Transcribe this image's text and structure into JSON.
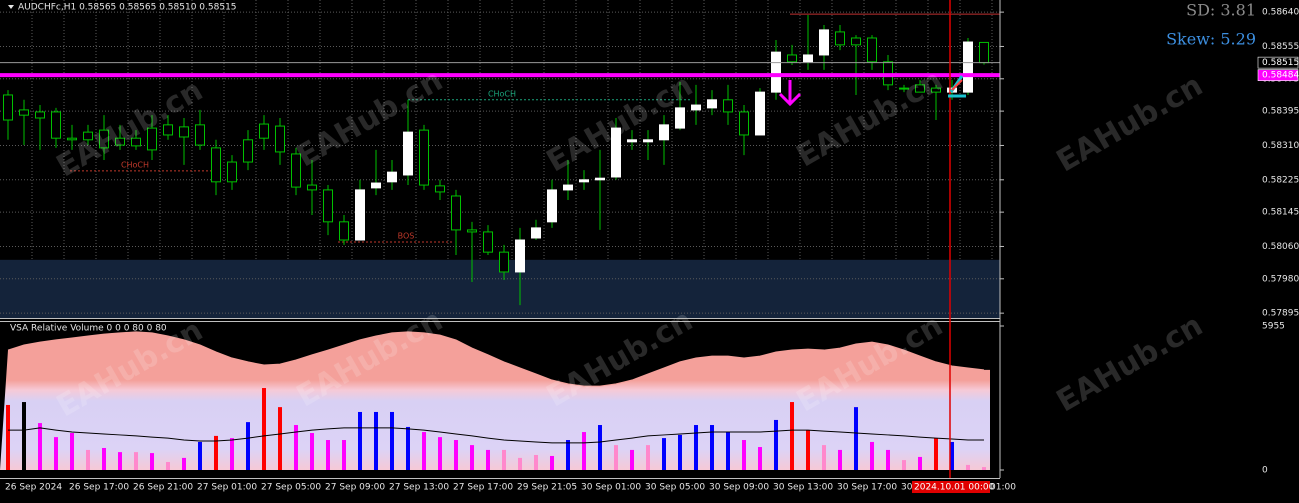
{
  "chart_data": [
    {
      "type": "candlestick",
      "title": "AUDCHFc,H1  0.58565 0.58565 0.58510 0.58515",
      "open": [
        0.58435,
        0.58398,
        0.58393,
        0.58393,
        0.58328,
        0.58343,
        0.58348,
        0.58328,
        0.58328,
        0.58353,
        0.58361,
        0.58356,
        0.58361,
        0.58304,
        0.58269,
        0.58324,
        0.58363,
        0.58358,
        0.58289,
        0.58212,
        0.582,
        0.58121,
        0.58076,
        0.58205,
        0.5822,
        0.58237,
        0.58348,
        0.5821,
        0.58185,
        0.58101,
        0.58096,
        0.58046,
        0.57997,
        0.58081,
        0.58121,
        0.582,
        0.5822,
        0.58225,
        0.58232,
        0.58319,
        0.58319,
        0.58324,
        0.58353,
        0.58398,
        0.58403,
        0.58423,
        0.58393,
        0.58336,
        0.58442,
        0.58534,
        0.58517,
        0.58534,
        0.58591,
        0.58576,
        0.58576,
        0.58517,
        0.58452,
        0.5846,
        0.58452,
        0.58442,
        0.58442,
        0.58565
      ],
      "high": [
        0.58447,
        0.58423,
        0.5841,
        0.58403,
        0.58361,
        0.58361,
        0.58385,
        0.58361,
        0.58348,
        0.58385,
        0.58385,
        0.58378,
        0.58398,
        0.58324,
        0.58286,
        0.58348,
        0.58385,
        0.58378,
        0.58304,
        0.58274,
        0.58212,
        0.58138,
        0.58225,
        0.58299,
        0.58274,
        0.58423,
        0.58361,
        0.58225,
        0.582,
        0.58121,
        0.58113,
        0.58064,
        0.58106,
        0.58126,
        0.58225,
        0.58274,
        0.58249,
        0.58299,
        0.58378,
        0.58348,
        0.58348,
        0.58385,
        0.58467,
        0.5846,
        0.58447,
        0.5846,
        0.5841,
        0.58452,
        0.58571,
        0.58559,
        0.58633,
        0.58608,
        0.58608,
        0.58583,
        0.58583,
        0.58534,
        0.5846,
        0.58472,
        0.5846,
        0.58472,
        0.58576,
        0.58565
      ],
      "low": [
        0.58324,
        0.58311,
        0.58299,
        0.58304,
        0.58299,
        0.58311,
        0.58274,
        0.58299,
        0.58299,
        0.58274,
        0.58324,
        0.58262,
        0.58299,
        0.58187,
        0.582,
        0.58249,
        0.58299,
        0.58262,
        0.58187,
        0.58138,
        0.58088,
        0.58064,
        0.58076,
        0.58187,
        0.582,
        0.58212,
        0.582,
        0.58175,
        0.58039,
        0.57972,
        0.58039,
        0.57977,
        0.57915,
        0.58076,
        0.58106,
        0.58175,
        0.582,
        0.58101,
        0.58225,
        0.58299,
        0.58274,
        0.58262,
        0.58348,
        0.58361,
        0.58385,
        0.58361,
        0.58286,
        0.58336,
        0.58423,
        0.58509,
        0.58497,
        0.58497,
        0.58546,
        0.58435,
        0.58497,
        0.58447,
        0.58442,
        0.58442,
        0.58373,
        0.58423,
        0.58435,
        0.5851
      ],
      "close": [
        0.58373,
        0.58385,
        0.58378,
        0.58328,
        0.58324,
        0.58324,
        0.58304,
        0.58311,
        0.58309,
        0.58299,
        0.58336,
        0.58331,
        0.58311,
        0.5822,
        0.5822,
        0.58269,
        0.58328,
        0.58294,
        0.58207,
        0.582,
        0.58121,
        0.58076,
        0.582,
        0.58217,
        0.58244,
        0.58343,
        0.58212,
        0.58195,
        0.58101,
        0.58096,
        0.58046,
        0.57997,
        0.58076,
        0.58106,
        0.582,
        0.58212,
        0.58225,
        0.58229,
        0.58353,
        0.58324,
        0.58324,
        0.58361,
        0.58403,
        0.5841,
        0.58423,
        0.58393,
        0.58336,
        0.58442,
        0.58541,
        0.58517,
        0.58534,
        0.58596,
        0.58559,
        0.58559,
        0.58517,
        0.5846,
        0.5845,
        0.58442,
        0.58442,
        0.58452,
        0.58566,
        0.58515
      ],
      "up_color": "#ffffff",
      "down_color": "#000000",
      "wick_color": "#00c000",
      "ylim": [
        0.57883,
        0.5867
      ],
      "yticks": [
        {
          "value": 0.5864,
          "label": "0.58640"
        },
        {
          "value": 0.58555,
          "label": "0.58555"
        },
        {
          "value": 0.58475,
          "label": "0.58475"
        },
        {
          "value": 0.58395,
          "label": "0.58395"
        },
        {
          "value": 0.5831,
          "label": "0.58310"
        },
        {
          "value": 0.58225,
          "label": "0.58225"
        },
        {
          "value": 0.58145,
          "label": "0.58145"
        },
        {
          "value": 0.5806,
          "label": "0.58060"
        },
        {
          "value": 0.5798,
          "label": "0.57980"
        },
        {
          "value": 0.57895,
          "label": "0.57895"
        }
      ],
      "grid": true,
      "price_tags": [
        {
          "value": 0.58515,
          "label": "0.58515",
          "color": "#000000"
        },
        {
          "value": 0.58484,
          "label": "0.58484",
          "color": "#ff00ff"
        }
      ],
      "high_line": 0.58635,
      "zone_top": 0.58027,
      "levels": [
        {
          "text": "CHoCH",
          "value": 0.58423,
          "color": "#1aa37a"
        },
        {
          "text": "CHoCH",
          "value": 0.58247,
          "color": "#c0392b"
        },
        {
          "text": "BOS",
          "value": 0.58071,
          "color": "#c0392b"
        }
      ],
      "stats": {
        "sd": "SD: 3.81",
        "skew": "Skew: 5.29"
      },
      "x_labels": [
        "26 Sep 2024",
        "26 Sep 17:00",
        "26 Sep 21:00",
        "27 Sep 01:00",
        "27 Sep 05:00",
        "27 Sep 09:00",
        "27 Sep 13:00",
        "27 Sep 17:00",
        "29 Sep 21:05",
        "30 Sep 01:00",
        "30 Sep 05:00",
        "30 Sep 09:00",
        "30 Sep 13:00",
        "30 Sep 17:00",
        "30",
        "01:00"
      ],
      "cursor_label": "2024.10.01 00:00",
      "watermark": "EAHub.cn"
    },
    {
      "type": "bar",
      "title": "VSA Relative Volume 0 0 0 80 0 80",
      "values": [
        2690,
        2810,
        1940,
        1360,
        1530,
        830,
        910,
        740,
        740,
        700,
        330,
        500,
        1160,
        1410,
        1320,
        1980,
        3390,
        2600,
        1860,
        1530,
        1240,
        1240,
        2400,
        2400,
        2400,
        1780,
        1570,
        1360,
        1240,
        1030,
        830,
        830,
        500,
        620,
        580,
        1240,
        1570,
        1860,
        1030,
        830,
        1030,
        1320,
        1450,
        1860,
        1860,
        1570,
        1240,
        950,
        2070,
        2810,
        1650,
        1030,
        830,
        2600,
        1160,
        830,
        410,
        540,
        1320,
        1160,
        210,
        120
      ],
      "colors": [
        "#ff0000",
        "#000000",
        "#ff00ff",
        "#ff00ff",
        "#ff00ff",
        "#ff88cc",
        "#ff00ff",
        "#ff00ff",
        "#ff88cc",
        "#ff00ff",
        "#ff88cc",
        "#ff00ff",
        "#0000ff",
        "#ff0000",
        "#ff00ff",
        "#0000ff",
        "#ff0000",
        "#ff0000",
        "#ff00ff",
        "#ff00ff",
        "#ff00ff",
        "#ff00ff",
        "#0000ff",
        "#0000ff",
        "#0000ff",
        "#0000ff",
        "#ff00ff",
        "#ff00ff",
        "#ff00ff",
        "#ff00ff",
        "#ff00ff",
        "#ff88cc",
        "#ff88cc",
        "#ff88cc",
        "#ff00ff",
        "#0000ff",
        "#ff00ff",
        "#0000ff",
        "#ff88cc",
        "#ff00ff",
        "#ff88cc",
        "#0000ff",
        "#0000ff",
        "#0000ff",
        "#0000ff",
        "#0000ff",
        "#ff00ff",
        "#ff00ff",
        "#0000ff",
        "#ff0000",
        "#ff0000",
        "#ff88cc",
        "#ff00ff",
        "#0000ff",
        "#ff00ff",
        "#ff00ff",
        "#ff88cc",
        "#ff00ff",
        "#ff0000",
        "#0000ff",
        "#ff88cc",
        "#ff88cc"
      ],
      "envelope": [
        4960,
        5170,
        5290,
        5380,
        5460,
        5540,
        5620,
        5670,
        5710,
        5670,
        5540,
        5380,
        5170,
        4880,
        4630,
        4470,
        4340,
        4380,
        4550,
        4760,
        4960,
        5170,
        5380,
        5540,
        5670,
        5710,
        5670,
        5580,
        5380,
        5040,
        4760,
        4470,
        4220,
        3970,
        3720,
        3560,
        3470,
        3470,
        3560,
        3720,
        3970,
        4220,
        4470,
        4630,
        4710,
        4710,
        4630,
        4710,
        4880,
        4960,
        5000,
        4960,
        5040,
        5210,
        5290,
        5170,
        4960,
        4710,
        4470,
        4300,
        4220,
        4140
      ],
      "average": [
        1650,
        1650,
        1740,
        1650,
        1570,
        1530,
        1490,
        1450,
        1410,
        1360,
        1320,
        1240,
        1200,
        1200,
        1240,
        1320,
        1410,
        1490,
        1570,
        1650,
        1700,
        1740,
        1740,
        1740,
        1740,
        1700,
        1650,
        1570,
        1490,
        1410,
        1320,
        1240,
        1200,
        1160,
        1120,
        1120,
        1120,
        1160,
        1240,
        1320,
        1410,
        1450,
        1490,
        1530,
        1570,
        1570,
        1570,
        1570,
        1610,
        1650,
        1650,
        1610,
        1570,
        1530,
        1490,
        1450,
        1410,
        1360,
        1320,
        1280,
        1240,
        1240
      ],
      "ylim": [
        0,
        5955
      ],
      "yticks": [
        0,
        5955
      ]
    }
  ]
}
